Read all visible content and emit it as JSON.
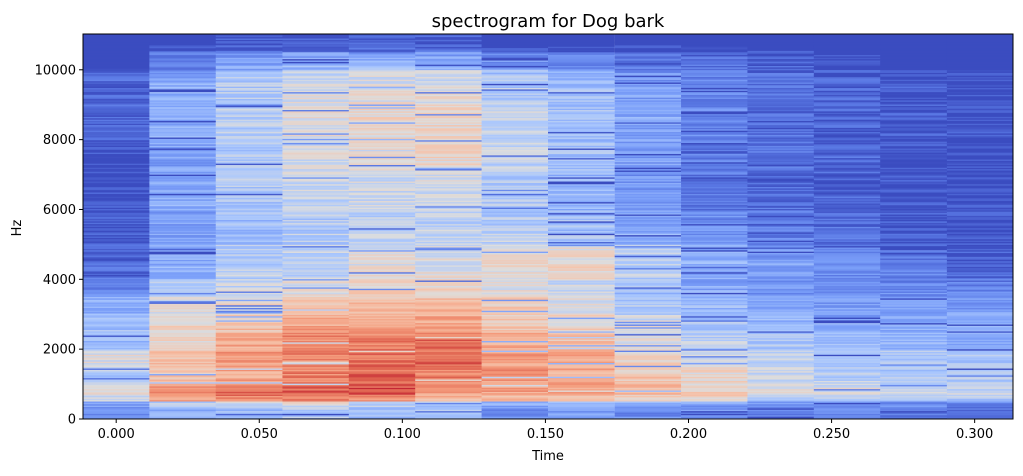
{
  "chart_data": {
    "type": "heatmap",
    "title": "spectrogram for Dog bark",
    "xlabel": "Time",
    "ylabel": "Hz",
    "xlim": [
      -0.0116,
      0.3134
    ],
    "ylim": [
      0,
      11025
    ],
    "x_ticks": [
      0.0,
      0.05,
      0.1,
      0.15,
      0.2,
      0.25,
      0.3
    ],
    "x_tick_labels": [
      "0.000",
      "0.050",
      "0.100",
      "0.150",
      "0.200",
      "0.250",
      "0.300"
    ],
    "y_ticks": [
      0,
      2000,
      4000,
      6000,
      8000,
      10000
    ],
    "y_tick_labels": [
      "0",
      "2000",
      "4000",
      "6000",
      "8000",
      "10000"
    ],
    "colormap": "coolwarm",
    "colormap_stops": [
      "#3b4cc0",
      "#5977e3",
      "#7b9ff9",
      "#aac7fd",
      "#dddddd",
      "#f5c4ac",
      "#f49a7b",
      "#de604d",
      "#b40426"
    ],
    "grid": false,
    "frame_times": [
      0.0,
      0.0232,
      0.0464,
      0.0697,
      0.0929,
      0.1161,
      0.1393,
      0.1625,
      0.1858,
      0.209,
      0.2322,
      0.2554,
      0.2786,
      0.3019
    ],
    "band_edges_hz": [
      0,
      500,
      1000,
      1500,
      2000,
      2500,
      3000,
      3500,
      4000,
      5000,
      6000,
      7000,
      8000,
      9000,
      10000,
      10500,
      11025
    ],
    "relative_level": [
      [
        0.2,
        0.5,
        0.4,
        0.5,
        0.35,
        0.35,
        0.3,
        0.18,
        0.08,
        0.06,
        0.02,
        0.02,
        0.08,
        0.1,
        0.0,
        0.0
      ],
      [
        0.3,
        0.8,
        0.6,
        0.62,
        0.55,
        0.55,
        0.5,
        0.4,
        0.3,
        0.25,
        0.3,
        0.25,
        0.3,
        0.3,
        0.15,
        0.0
      ],
      [
        0.35,
        0.85,
        0.7,
        0.75,
        0.7,
        0.62,
        0.55,
        0.45,
        0.4,
        0.35,
        0.38,
        0.4,
        0.42,
        0.4,
        0.25,
        0.05
      ],
      [
        0.4,
        0.85,
        0.8,
        0.8,
        0.8,
        0.7,
        0.62,
        0.5,
        0.42,
        0.4,
        0.45,
        0.48,
        0.5,
        0.48,
        0.3,
        0.05
      ],
      [
        0.35,
        0.88,
        0.85,
        0.85,
        0.8,
        0.72,
        0.65,
        0.55,
        0.5,
        0.42,
        0.45,
        0.5,
        0.55,
        0.5,
        0.3,
        0.05
      ],
      [
        0.35,
        0.75,
        0.8,
        0.85,
        0.85,
        0.72,
        0.65,
        0.55,
        0.5,
        0.42,
        0.45,
        0.55,
        0.55,
        0.5,
        0.3,
        0.05
      ],
      [
        0.2,
        0.72,
        0.75,
        0.72,
        0.7,
        0.6,
        0.6,
        0.5,
        0.55,
        0.4,
        0.38,
        0.45,
        0.45,
        0.4,
        0.22,
        0.0
      ],
      [
        0.25,
        0.7,
        0.7,
        0.7,
        0.62,
        0.55,
        0.5,
        0.45,
        0.55,
        0.35,
        0.32,
        0.35,
        0.38,
        0.35,
        0.18,
        0.0
      ],
      [
        0.2,
        0.65,
        0.6,
        0.55,
        0.5,
        0.48,
        0.4,
        0.35,
        0.42,
        0.28,
        0.22,
        0.25,
        0.28,
        0.25,
        0.15,
        0.0
      ],
      [
        0.2,
        0.6,
        0.55,
        0.5,
        0.42,
        0.38,
        0.33,
        0.28,
        0.3,
        0.2,
        0.12,
        0.15,
        0.18,
        0.18,
        0.1,
        0.0
      ],
      [
        0.15,
        0.5,
        0.45,
        0.42,
        0.38,
        0.33,
        0.28,
        0.22,
        0.25,
        0.15,
        0.1,
        0.12,
        0.12,
        0.12,
        0.06,
        0.0
      ],
      [
        0.15,
        0.5,
        0.4,
        0.42,
        0.33,
        0.28,
        0.24,
        0.18,
        0.2,
        0.1,
        0.08,
        0.08,
        0.08,
        0.08,
        0.02,
        0.0
      ],
      [
        0.15,
        0.48,
        0.4,
        0.38,
        0.33,
        0.28,
        0.24,
        0.18,
        0.15,
        0.05,
        0.04,
        0.04,
        0.06,
        0.04,
        0.0,
        0.0
      ],
      [
        0.1,
        0.45,
        0.4,
        0.38,
        0.28,
        0.28,
        0.24,
        0.15,
        0.06,
        0.03,
        0.02,
        0.02,
        0.02,
        0.02,
        0.0,
        0.0
      ]
    ]
  }
}
